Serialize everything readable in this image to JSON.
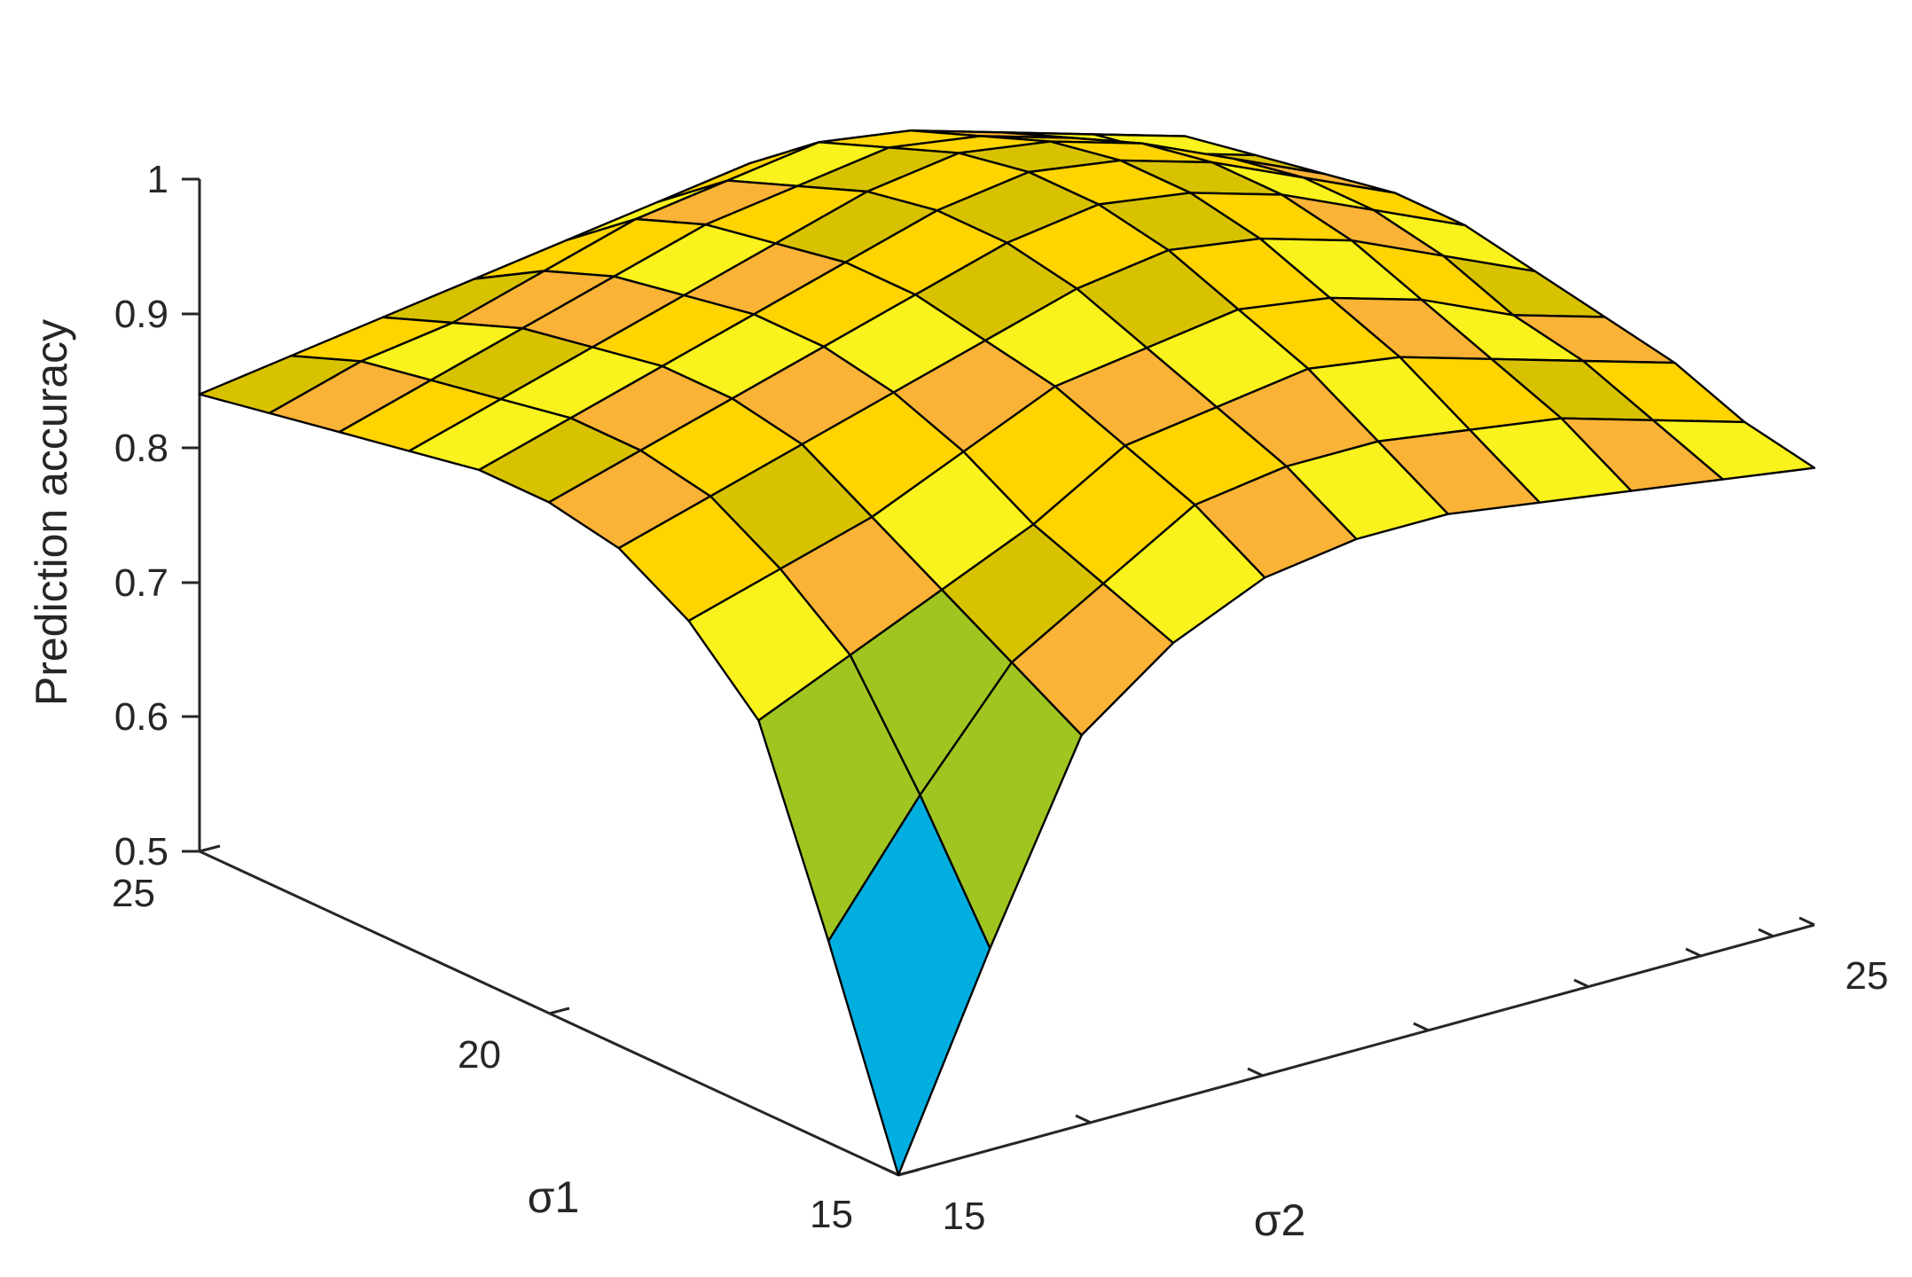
{
  "chart_data": {
    "type": "surface",
    "title": "",
    "xlabel": "σ2",
    "ylabel": "σ1",
    "zlabel": "Prediction accuracy",
    "xlim": [
      15,
      25
    ],
    "ylim": [
      15,
      25
    ],
    "zlim": [
      0.5,
      1
    ],
    "grid": false,
    "x_ticks": [
      "15",
      "",
      "",
      "",
      "",
      "",
      "",
      "25"
    ],
    "y_ticks": [
      "15",
      "20",
      "25"
    ],
    "z_ticks": [
      "0.5",
      "0.6",
      "0.7",
      "0.8",
      "0.9",
      "1"
    ],
    "x": [
      15,
      16,
      17,
      18,
      19,
      20,
      21,
      22,
      23,
      24,
      25
    ],
    "y": [
      15,
      16,
      17,
      18,
      19,
      20,
      21,
      22,
      23,
      24,
      25
    ],
    "z": [
      [
        0.5,
        0.65,
        0.79,
        0.84,
        0.87,
        0.88,
        0.88,
        0.87,
        0.86,
        0.85,
        0.84
      ],
      [
        0.65,
        0.74,
        0.82,
        0.86,
        0.9,
        0.91,
        0.91,
        0.9,
        0.89,
        0.87,
        0.85
      ],
      [
        0.79,
        0.82,
        0.85,
        0.88,
        0.92,
        0.93,
        0.94,
        0.93,
        0.91,
        0.89,
        0.87
      ],
      [
        0.84,
        0.86,
        0.88,
        0.91,
        0.94,
        0.95,
        0.96,
        0.95,
        0.93,
        0.9,
        0.88
      ],
      [
        0.87,
        0.89,
        0.91,
        0.93,
        0.95,
        0.97,
        0.98,
        0.97,
        0.95,
        0.92,
        0.89
      ],
      [
        0.88,
        0.9,
        0.92,
        0.94,
        0.96,
        0.98,
        0.99,
        0.98,
        0.96,
        0.93,
        0.9
      ],
      [
        0.88,
        0.9,
        0.92,
        0.94,
        0.96,
        0.98,
        0.99,
        0.98,
        0.96,
        0.93,
        0.9
      ],
      [
        0.87,
        0.89,
        0.91,
        0.93,
        0.95,
        0.97,
        0.98,
        0.97,
        0.95,
        0.92,
        0.89
      ],
      [
        0.86,
        0.88,
        0.9,
        0.92,
        0.94,
        0.95,
        0.96,
        0.95,
        0.93,
        0.9,
        0.88
      ],
      [
        0.85,
        0.87,
        0.88,
        0.9,
        0.92,
        0.93,
        0.94,
        0.93,
        0.91,
        0.89,
        0.87
      ],
      [
        0.84,
        0.85,
        0.86,
        0.87,
        0.88,
        0.89,
        0.9,
        0.89,
        0.88,
        0.86,
        0.84
      ]
    ],
    "colormap": [
      "#3e26a8",
      "#00aee0",
      "#a0c521",
      "#fab336",
      "#ffd400",
      "#f9f21d",
      "#d8c200"
    ]
  }
}
